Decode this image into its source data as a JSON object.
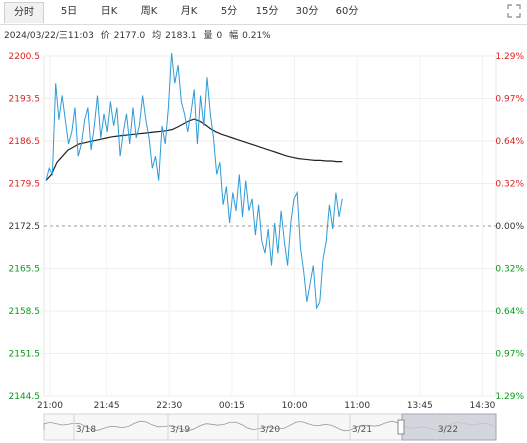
{
  "tabs": [
    {
      "label": "分时",
      "active": true
    },
    {
      "label": "5日"
    },
    {
      "label": "日K"
    },
    {
      "label": "周K"
    },
    {
      "label": "月K"
    },
    {
      "label": "5分"
    },
    {
      "label": "15分"
    },
    {
      "label": "30分"
    },
    {
      "label": "60分"
    }
  ],
  "expand_icon": "expand-icon",
  "info": {
    "datetime": "2024/03/22/三11:03",
    "price_label": "价",
    "price": "2177.0",
    "avg_label": "均",
    "avg": "2183.1",
    "vol_label": "量",
    "vol": "0",
    "chg_label": "幅",
    "chg": "0.21%"
  },
  "colors": {
    "price_line": "#2e9bd6",
    "avg_line": "#222222",
    "up": "#e02020",
    "down": "#0a9a1a",
    "base": "#9a9a9a"
  },
  "chart_data": {
    "type": "line",
    "ylabels": [
      "2200.5",
      "2193.5",
      "2186.5",
      "2179.5",
      "2172.5",
      "2165.5",
      "2158.5",
      "2151.5",
      "2144.5"
    ],
    "ylabels_right": [
      "1.29%",
      "0.97%",
      "0.64%",
      "0.32%",
      "0.00%",
      "0.32%",
      "0.64%",
      "0.97%",
      "1.29%"
    ],
    "y_range": [
      2144.5,
      2200.5
    ],
    "base_value": 2172.5,
    "xticks": [
      "21:00",
      "21:45",
      "22:30",
      "00:15",
      "10:00",
      "11:00",
      "13:45",
      "14:30"
    ],
    "nav_labels": [
      "3/18",
      "3/19",
      "3/20",
      "3/21",
      "3/22"
    ],
    "price": [
      2180,
      2182,
      2181,
      2196,
      2190,
      2194,
      2190,
      2186,
      2188,
      2192,
      2184,
      2186,
      2190,
      2192,
      2185,
      2189,
      2194,
      2187,
      2191,
      2188,
      2193,
      2189,
      2192,
      2184,
      2188,
      2191,
      2186,
      2192,
      2187,
      2189,
      2194,
      2190,
      2187,
      2182,
      2184,
      2180,
      2189,
      2186,
      2192,
      2201,
      2196,
      2199,
      2193,
      2191,
      2188,
      2191,
      2195,
      2186,
      2194,
      2189,
      2197,
      2191,
      2187,
      2181,
      2183,
      2176,
      2179,
      2173,
      2178,
      2175,
      2181,
      2174,
      2180,
      2175,
      2177,
      2171,
      2176,
      2170,
      2168,
      2172,
      2166,
      2173,
      2168,
      2175,
      2170,
      2166,
      2173,
      2177,
      2178,
      2169,
      2165,
      2160,
      2163,
      2166,
      2159,
      2160,
      2167,
      2170,
      2176,
      2172,
      2178,
      2174,
      2177
    ],
    "avg": [
      2180,
      2181,
      2183,
      2184,
      2185,
      2185.5,
      2186,
      2186.2,
      2186.4,
      2186.6,
      2186.8,
      2187,
      2187.2,
      2187.3,
      2187.4,
      2187.5,
      2187.6,
      2187.7,
      2187.8,
      2187.9,
      2188,
      2188.1,
      2188.2,
      2188.4,
      2188.8,
      2189.3,
      2189.8,
      2190.1,
      2189.8,
      2189.2,
      2188.5,
      2188,
      2187.6,
      2187.3,
      2187,
      2186.7,
      2186.4,
      2186.1,
      2185.8,
      2185.5,
      2185.2,
      2184.9,
      2184.6,
      2184.3,
      2184.0,
      2183.8,
      2183.6,
      2183.5,
      2183.4,
      2183.3,
      2183.3,
      2183.2,
      2183.2,
      2183.1,
      2183.1
    ],
    "avg_start": 40
  }
}
